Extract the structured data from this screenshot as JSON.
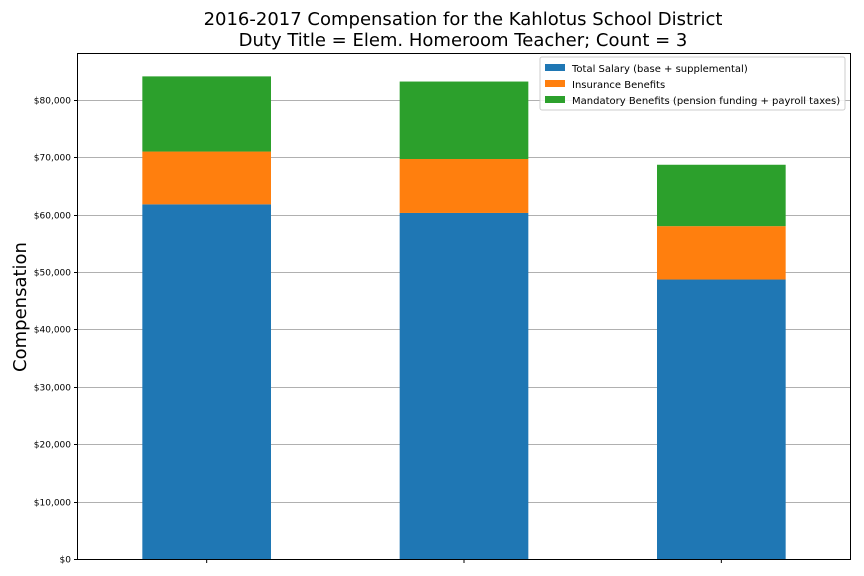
{
  "chart_data": {
    "type": "bar",
    "stacked": true,
    "title": [
      "2016-2017 Compensation for the Kahlotus School District",
      "Duty Title = Elem. Homeroom Teacher; Count = 3"
    ],
    "ylabel": "Compensation",
    "xlabel": "",
    "ylim": [
      0,
      88000
    ],
    "yticks": [
      0,
      10000,
      20000,
      30000,
      40000,
      50000,
      60000,
      70000,
      80000
    ],
    "ytick_labels": [
      "$0",
      "$10,000",
      "$20,000",
      "$30,000",
      "$40,000",
      "$50,000",
      "$60,000",
      "$70,000",
      "$80,000"
    ],
    "grid": "horizontal",
    "legend_position": "top-right",
    "categories": [
      "",
      "",
      ""
    ],
    "series": [
      {
        "name": "Total Salary (base + supplemental)",
        "color": "#1f77b4",
        "values": [
          61800,
          60300,
          48700
        ]
      },
      {
        "name": "Insurance Benefits",
        "color": "#ff7f0e",
        "values": [
          9200,
          9400,
          9300
        ]
      },
      {
        "name": "Mandatory Benefits (pension funding + payroll taxes)",
        "color": "#2ca02c",
        "values": [
          13100,
          13500,
          10700
        ]
      }
    ]
  }
}
